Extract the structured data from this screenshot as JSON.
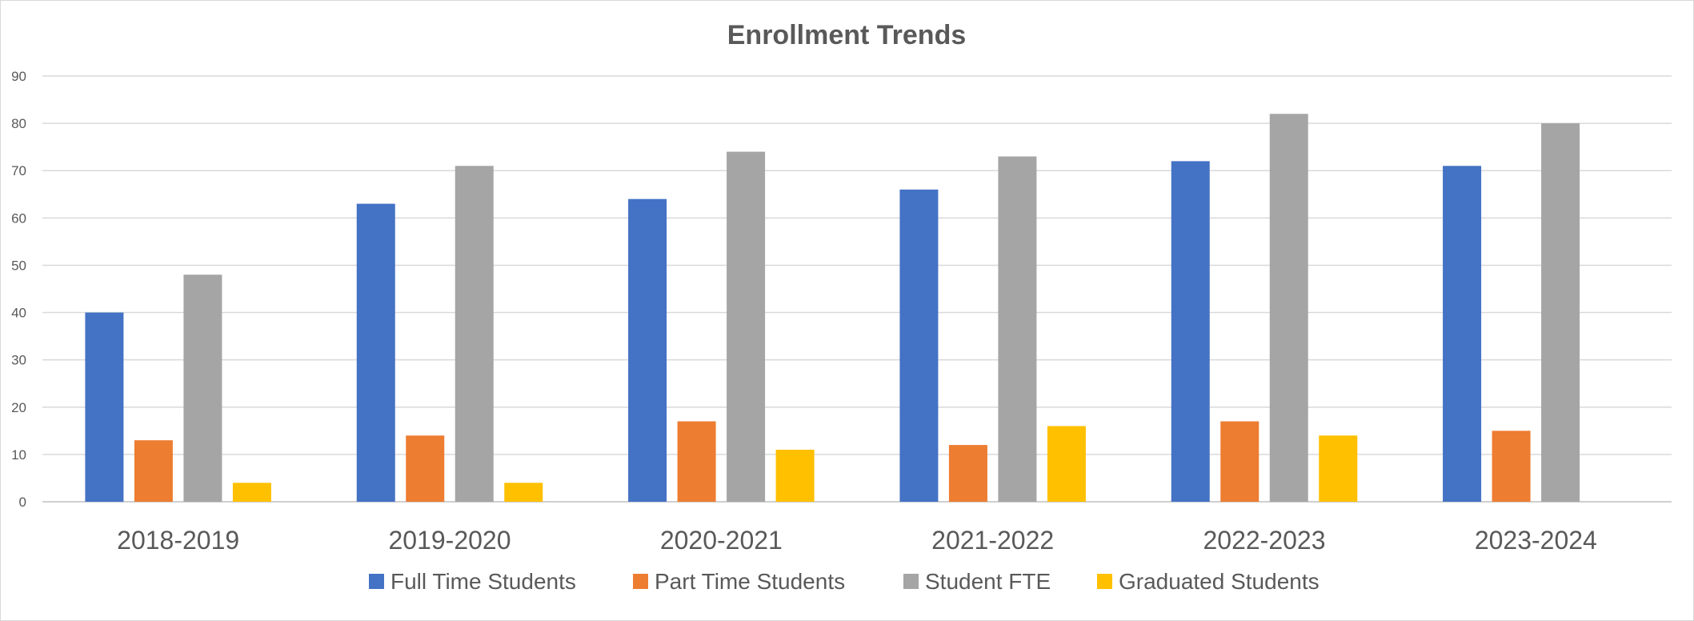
{
  "chart_data": {
    "type": "bar",
    "title": "Enrollment Trends",
    "xlabel": "",
    "ylabel": "",
    "ylim": [
      0,
      90
    ],
    "yticks": [
      "0",
      "10",
      "20",
      "30",
      "40",
      "50",
      "60",
      "70",
      "80",
      "90"
    ],
    "grid": true,
    "legend_position": "bottom",
    "categories": [
      "2018-2019",
      "2019-2020",
      "2020-2021",
      "2021-2022",
      "2022-2023",
      "2023-2024"
    ],
    "series": [
      {
        "name": "Full Time Students",
        "color": "#4472C4",
        "values": [
          40,
          63,
          64,
          66,
          72,
          71
        ]
      },
      {
        "name": "Part Time Students",
        "color": "#ED7D31",
        "values": [
          13,
          14,
          17,
          12,
          17,
          15
        ]
      },
      {
        "name": "Student FTE",
        "color": "#A5A5A5",
        "values": [
          48,
          71,
          74,
          73,
          82,
          80
        ]
      },
      {
        "name": "Graduated Students",
        "color": "#FFC000",
        "values": [
          4,
          4,
          11,
          16,
          14,
          0
        ]
      }
    ]
  }
}
